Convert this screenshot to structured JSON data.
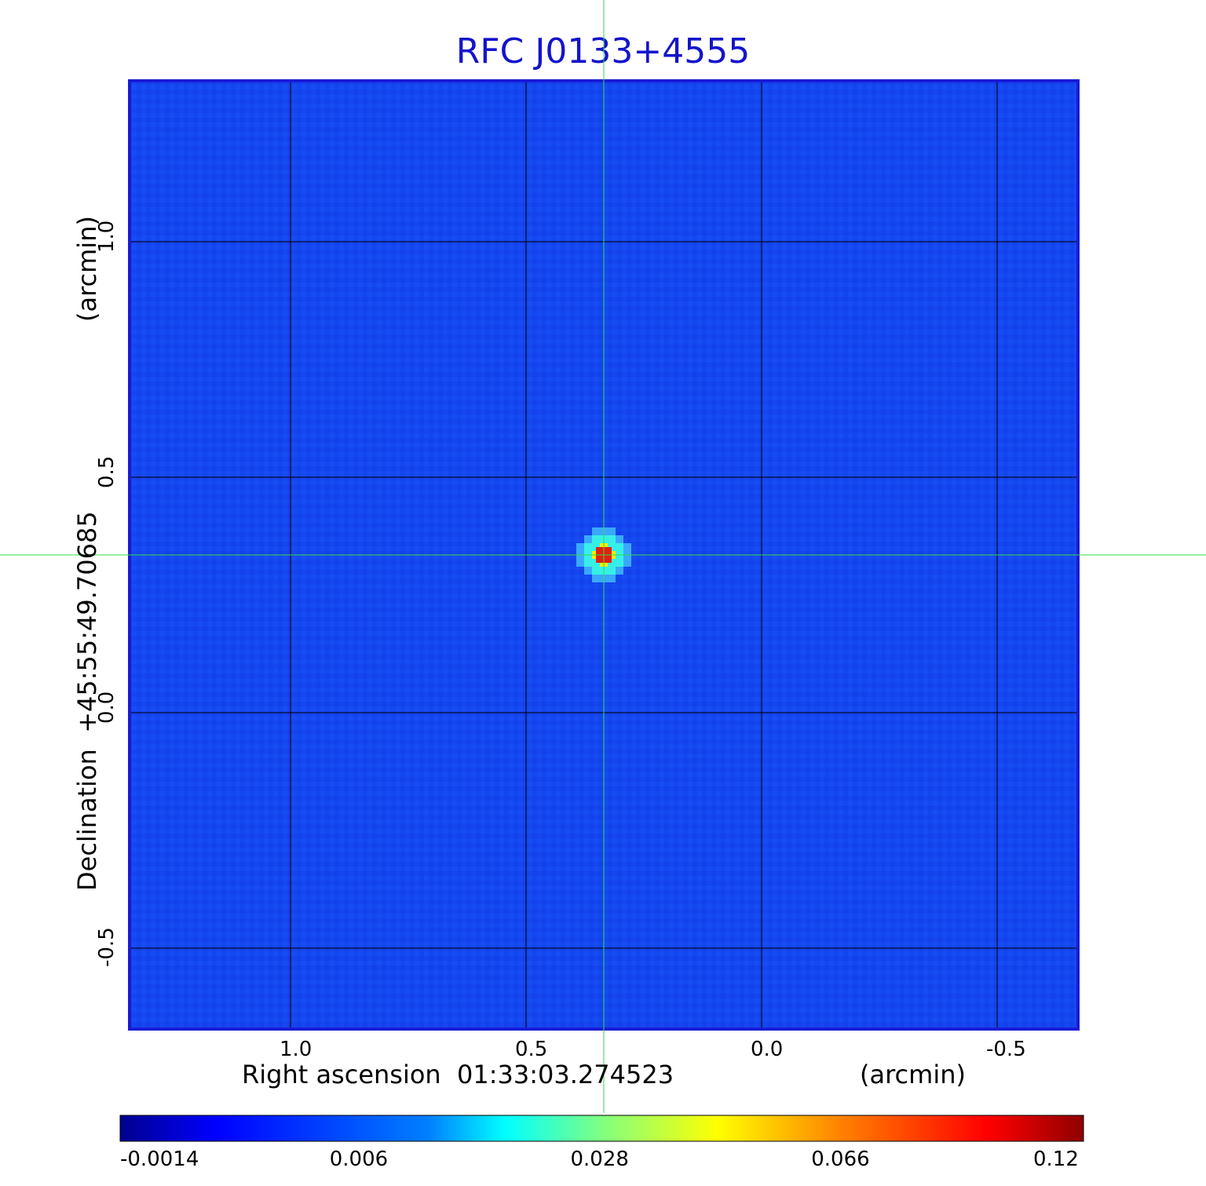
{
  "chart_data": {
    "type": "heatmap",
    "title": "RFC J0133+4555",
    "xlabel": "Right ascension  01:33:03.274523",
    "xlabel_unit": "(arcmin)",
    "ylabel": "Declination  +45:55:49.70685",
    "ylabel_unit": "(arcmin)",
    "x_ticks": [
      1.0,
      0.5,
      0.0,
      -0.5
    ],
    "x_tick_labels": [
      "1.0",
      "0.5",
      "0.0",
      "-0.5"
    ],
    "y_ticks": [
      1.0,
      0.5,
      0.0,
      -0.5
    ],
    "y_tick_labels": [
      "1.0",
      "0.5",
      "0.0",
      "-0.5"
    ],
    "xlim": [
      1.34,
      -0.67
    ],
    "ylim": [
      -0.67,
      1.34
    ],
    "grid": true,
    "crosshair": {
      "x": 0.335,
      "y": 0.335
    },
    "source_peak": {
      "x": 0.335,
      "y": 0.335,
      "value": 0.12
    },
    "colorbar": {
      "colormap": "jet",
      "tick_labels": [
        "-0.0014",
        "0.006",
        "0.028",
        "0.066",
        "0.12"
      ],
      "range": [
        -0.0014,
        0.12
      ]
    }
  },
  "colors": {
    "background_map": "#1446f0",
    "frame": "#1a1ad6",
    "grid": "#000000",
    "crosshair": "#33dd44",
    "title": "#1414cc"
  }
}
